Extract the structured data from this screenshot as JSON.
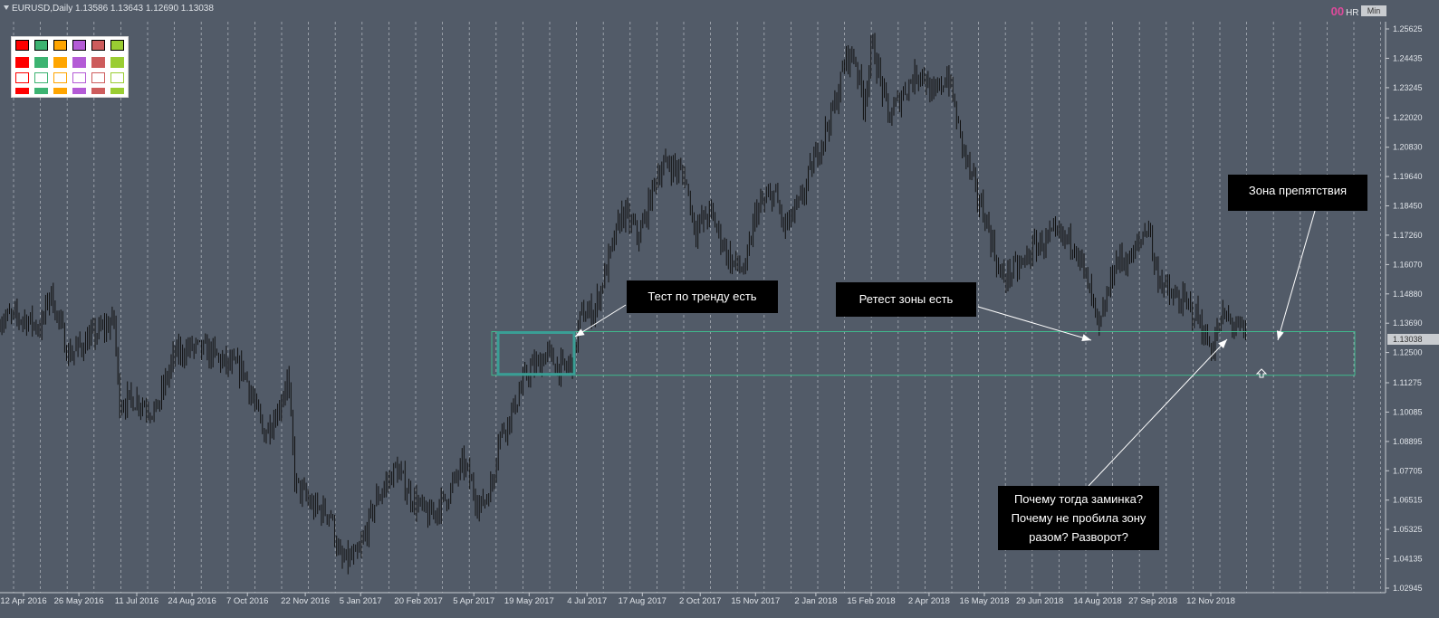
{
  "window": {
    "symbol_line": "EURUSD,Daily  1.13586 1.13643 1.12690 1.13038",
    "indicator_hr": "HR",
    "indicator_min": "Min",
    "counter_a": "00",
    "counter_b": "00"
  },
  "colors": {
    "background": "#525b68",
    "grid": "#c8ccd2",
    "candles": "#111111",
    "zone": "#3fb88c",
    "highlight_box": "#3a9e95",
    "note_bg": "#000000",
    "note_text": "#ffffff",
    "price_tag_bg": "#c9ccd0"
  },
  "palette": {
    "rows": [
      [
        "#ff0000",
        "#3cb371",
        "#ffa500",
        "#b45bd6",
        "#cd5c5c",
        "#9acd32"
      ],
      [
        "#ff0000",
        "#3cb371",
        "#ffa500",
        "#b45bd6",
        "#cd5c5c",
        "#9acd32"
      ],
      [
        "#ff0000",
        "#3cb371",
        "#ffa500",
        "#b45bd6",
        "#cd5c5c",
        "#9acd32"
      ],
      [
        "#ff0000",
        "#3cb371",
        "#ffa500",
        "#b45bd6",
        "#cd5c5c",
        "#9acd32"
      ]
    ]
  },
  "annotations": {
    "trend_test": "Тест по тренду есть",
    "zone_retest": "Ретест зоны есть",
    "obstacle_zone": "Зона препятствия",
    "question_1": "Почему тогда заминка?",
    "question_2": "Почему не пробила зону",
    "question_3": "разом? Разворот?"
  },
  "chart_data": {
    "type": "candlestick",
    "instrument": "EURUSD",
    "timeframe": "Daily",
    "current_price": "1.13038",
    "y_ticks": [
      "1.25625",
      "1.24435",
      "1.23245",
      "1.22020",
      "1.20830",
      "1.19640",
      "1.18450",
      "1.17260",
      "1.16070",
      "1.14880",
      "1.13690",
      "1.12500",
      "1.11275",
      "1.10085",
      "1.08895",
      "1.07705",
      "1.06515",
      "1.05325",
      "1.04135",
      "1.02945"
    ],
    "x_ticks": [
      "12 Apr 2016",
      "26 May 2016",
      "11 Jul 2016",
      "24 Aug 2016",
      "7 Oct 2016",
      "22 Nov 2016",
      "5 Jan 2017",
      "20 Feb 2017",
      "5 Apr 2017",
      "19 May 2017",
      "4 Jul 2017",
      "17 Aug 2017",
      "2 Oct 2017",
      "15 Nov 2017",
      "2 Jan 2018",
      "15 Feb 2018",
      "2 Apr 2018",
      "16 May 2018",
      "29 Jun 2018",
      "14 Aug 2018",
      "27 Sep 2018",
      "12 Nov 2018"
    ],
    "ylim": [
      1.02945,
      1.25625
    ],
    "zone": {
      "upper": 1.1335,
      "lower": 1.1158
    },
    "price_path": [
      [
        "12 Apr 2016",
        1.139
      ],
      [
        "26 Apr 2016",
        1.135
      ],
      [
        "3 May 2016",
        1.15
      ],
      [
        "18 May 2016",
        1.124
      ],
      [
        "2 Jun 2016",
        1.13
      ],
      [
        "23 Jun 2016",
        1.138
      ],
      [
        "27 Jun 2016",
        1.105
      ],
      [
        "11 Jul 2016",
        1.106
      ],
      [
        "26 Jul 2016",
        1.101
      ],
      [
        "10 Aug 2016",
        1.124
      ],
      [
        "24 Aug 2016",
        1.127
      ],
      [
        "8 Sep 2016",
        1.125
      ],
      [
        "20 Sep 2016",
        1.12
      ],
      [
        "4 Oct 2016",
        1.118
      ],
      [
        "20 Oct 2016",
        1.092
      ],
      [
        "31 Oct 2016",
        1.101
      ],
      [
        "8 Nov 2016",
        1.115
      ],
      [
        "14 Nov 2016",
        1.072
      ],
      [
        "28 Nov 2016",
        1.062
      ],
      [
        "12 Dec 2016",
        1.06
      ],
      [
        "20 Dec 2016",
        1.04
      ],
      [
        "3 Jan 2017",
        1.042
      ],
      [
        "17 Jan 2017",
        1.065
      ],
      [
        "2 Feb 2017",
        1.078
      ],
      [
        "15 Feb 2017",
        1.066
      ],
      [
        "28 Feb 2017",
        1.058
      ],
      [
        "14 Mar 2017",
        1.066
      ],
      [
        "28 Mar 2017",
        1.08
      ],
      [
        "10 Apr 2017",
        1.062
      ],
      [
        "20 Apr 2017",
        1.072
      ],
      [
        "24 Apr 2017",
        1.09
      ],
      [
        "5 May 2017",
        1.1
      ],
      [
        "12 May 2017",
        1.11
      ],
      [
        "19 May 2017",
        1.118
      ],
      [
        "26 May 2017",
        1.12
      ],
      [
        "2 Jun 2017",
        1.125
      ],
      [
        "9 Jun 2017",
        1.12
      ],
      [
        "16 Jun 2017",
        1.118
      ],
      [
        "23 Jun 2017",
        1.122
      ],
      [
        "29 Jun 2017",
        1.14
      ],
      [
        "10 Jul 2017",
        1.142
      ],
      [
        "20 Jul 2017",
        1.16
      ],
      [
        "1 Aug 2017",
        1.182
      ],
      [
        "15 Aug 2017",
        1.172
      ],
      [
        "29 Aug 2017",
        1.198
      ],
      [
        "7 Sep 2017",
        1.202
      ],
      [
        "20 Sep 2017",
        1.196
      ],
      [
        "28 Sep 2017",
        1.175
      ],
      [
        "10 Oct 2017",
        1.182
      ],
      [
        "26 Oct 2017",
        1.162
      ],
      [
        "7 Nov 2017",
        1.158
      ],
      [
        "15 Nov 2017",
        1.182
      ],
      [
        "30 Nov 2017",
        1.19
      ],
      [
        "8 Dec 2017",
        1.175
      ],
      [
        "20 Dec 2017",
        1.185
      ],
      [
        "2 Jan 2018",
        1.205
      ],
      [
        "17 Jan 2018",
        1.225
      ],
      [
        "26 Jan 2018",
        1.245
      ],
      [
        "2 Feb 2018",
        1.245
      ],
      [
        "9 Feb 2018",
        1.226
      ],
      [
        "16 Feb 2018",
        1.25
      ],
      [
        "1 Mar 2018",
        1.22
      ],
      [
        "15 Mar 2018",
        1.233
      ],
      [
        "27 Mar 2018",
        1.24
      ],
      [
        "5 Apr 2018",
        1.228
      ],
      [
        "17 Apr 2018",
        1.238
      ],
      [
        "27 Apr 2018",
        1.212
      ],
      [
        "9 May 2018",
        1.19
      ],
      [
        "18 May 2018",
        1.178
      ],
      [
        "29 May 2018",
        1.155
      ],
      [
        "14 Jun 2018",
        1.16
      ],
      [
        "25 Jun 2018",
        1.168
      ],
      [
        "10 Jul 2018",
        1.172
      ],
      [
        "27 Jul 2018",
        1.17
      ],
      [
        "10 Aug 2018",
        1.145
      ],
      [
        "15 Aug 2018",
        1.133
      ],
      [
        "28 Aug 2018",
        1.162
      ],
      [
        "10 Sep 2018",
        1.163
      ],
      [
        "24 Sep 2018",
        1.178
      ],
      [
        "28 Sep 2018",
        1.16
      ],
      [
        "10 Oct 2018",
        1.148
      ],
      [
        "22 Oct 2018",
        1.145
      ],
      [
        "1 Nov 2018",
        1.14
      ],
      [
        "12 Nov 2018",
        1.126
      ],
      [
        "22 Nov 2018",
        1.14
      ],
      [
        "3 Dec 2018",
        1.135
      ],
      [
        "14 Dec 2018",
        1.13
      ]
    ]
  }
}
